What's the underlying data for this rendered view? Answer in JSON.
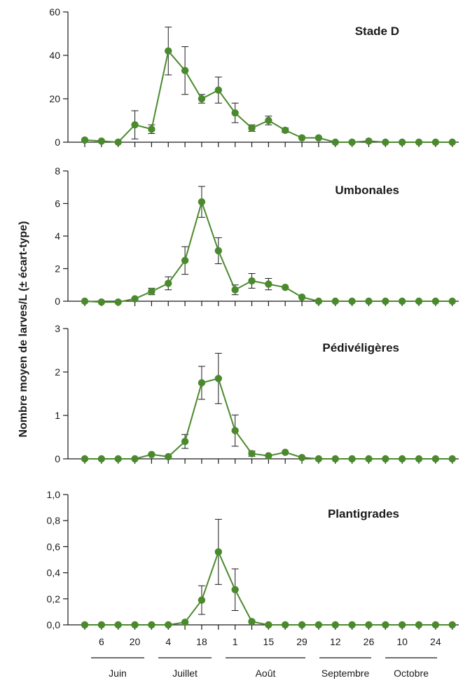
{
  "colors": {
    "series": "#4a8a2c",
    "axis": "#1a1a1a"
  },
  "ylabel": "Nombre moyen de larves/L (± écart-type)",
  "date_tick_labels": [
    "6",
    "20",
    "4",
    "18",
    "1",
    "15",
    "29",
    "12",
    "26",
    "10",
    "24"
  ],
  "months": [
    "Juin",
    "Juillet",
    "Août",
    "Septembre",
    "Octobre"
  ],
  "chart_data": [
    {
      "type": "line",
      "title": "Stade D",
      "yticks": [
        "0",
        "20",
        "40",
        "60"
      ],
      "ylim": [
        0,
        60
      ],
      "values": [
        1,
        0.5,
        0,
        8,
        6,
        42,
        33,
        20,
        24,
        13.5,
        6.5,
        10,
        5.5,
        2,
        2,
        0,
        0,
        0.5,
        0,
        0,
        0,
        0,
        0
      ],
      "errors": [
        0,
        0,
        0,
        6.5,
        2,
        11,
        11,
        2,
        6,
        4.5,
        1.5,
        2,
        1,
        0,
        0,
        0,
        0,
        0,
        0,
        0,
        0,
        0,
        0
      ]
    },
    {
      "type": "line",
      "title": "Umbonales",
      "yticks": [
        "0",
        "2",
        "4",
        "6",
        "8"
      ],
      "ylim": [
        0,
        8
      ],
      "values": [
        0,
        -0.05,
        -0.05,
        0.15,
        0.6,
        1.1,
        2.5,
        6.1,
        3.1,
        0.7,
        1.25,
        1.05,
        0.85,
        0.25,
        0,
        0,
        0,
        0,
        0,
        0,
        0,
        0,
        0
      ],
      "errors": [
        0,
        0,
        0,
        0,
        0.2,
        0.4,
        0.85,
        0.95,
        0.8,
        0.3,
        0.45,
        0.35,
        0,
        0,
        0,
        0,
        0,
        0,
        0,
        0,
        0,
        0,
        0
      ]
    },
    {
      "type": "line",
      "title": "Pédivéligères",
      "yticks": [
        "0",
        "1",
        "2",
        "3"
      ],
      "ylim": [
        0,
        3
      ],
      "values": [
        0,
        0,
        0,
        0,
        0.1,
        0.05,
        0.4,
        1.75,
        1.85,
        0.65,
        0.12,
        0.07,
        0.15,
        0.03,
        0,
        0,
        0,
        0,
        0,
        0,
        0,
        0,
        0
      ],
      "errors": [
        0,
        0,
        0,
        0,
        0,
        0,
        0.16,
        0.38,
        0.58,
        0.36,
        0.06,
        0,
        0,
        0,
        0,
        0,
        0,
        0,
        0,
        0,
        0,
        0,
        0
      ]
    },
    {
      "type": "line",
      "title": "Plantigrades",
      "yticks": [
        "0,0",
        "0,2",
        "0,4",
        "0,6",
        "0,8",
        "1,0"
      ],
      "ylim": [
        0,
        1
      ],
      "values": [
        0,
        0,
        0,
        0,
        0,
        0,
        0.02,
        0.19,
        0.56,
        0.27,
        0.025,
        0,
        0,
        0,
        0,
        0,
        0,
        0,
        0,
        0,
        0,
        0,
        0
      ],
      "errors": [
        0,
        0,
        0,
        0,
        0,
        0,
        0,
        0.11,
        0.25,
        0.16,
        0,
        0,
        0,
        0,
        0,
        0,
        0,
        0,
        0,
        0,
        0,
        0,
        0
      ]
    }
  ]
}
